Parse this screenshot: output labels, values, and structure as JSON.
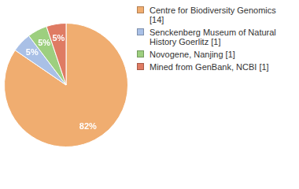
{
  "chart_data": {
    "type": "pie",
    "categories": [
      "Centre for Biodiversity Genomics [14]",
      "Senckenberg Museum of Natural History Goerlitz [1]",
      "Novogene, Nanjing [1]",
      "Mined from GenBank, NCBI [1]"
    ],
    "values": [
      82,
      5,
      5,
      5
    ],
    "value_labels": [
      "82%",
      "5%",
      "5%",
      "5%"
    ],
    "colors": [
      "#f0ad70",
      "#a9c0e6",
      "#9dcf7f",
      "#df7b63"
    ],
    "data_labels": true,
    "legend": "right"
  }
}
